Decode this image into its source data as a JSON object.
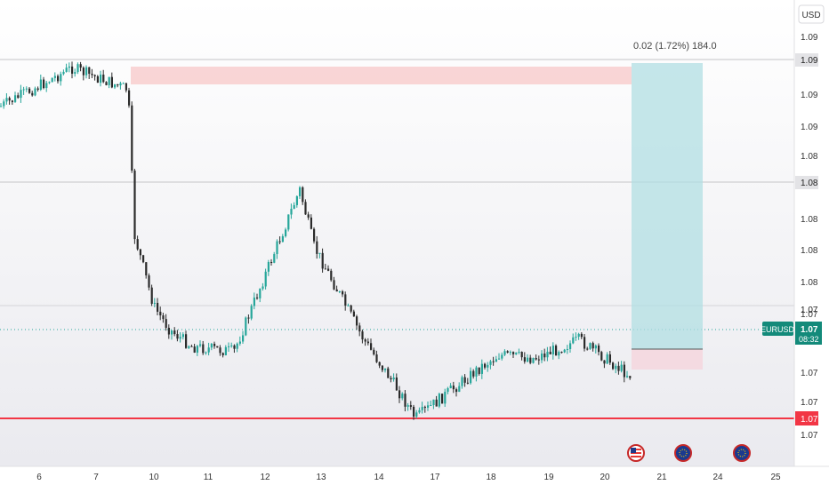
{
  "price_axis": {
    "currency_label": "USD",
    "tick_labels": [
      "1.09",
      "1.09",
      "1.09",
      "1.08",
      "1.08",
      "1.08",
      "1.08",
      "1.07",
      "1.07",
      "1.07",
      "1.07"
    ],
    "marker_top": "1.09",
    "marker_mid": "1.08",
    "marker_low": "1.07",
    "marker_current": "1.07"
  },
  "time_axis": {
    "labels": [
      "6",
      "7",
      "10",
      "11",
      "12",
      "13",
      "14",
      "17",
      "18",
      "19",
      "20",
      "21",
      "24",
      "25"
    ]
  },
  "symbol_tag": {
    "symbol": "EURUSD",
    "price": "1.07",
    "countdown": "08:32"
  },
  "position_tool": {
    "label": "0.02 (1.72%) 184.0"
  },
  "events": [
    {
      "icon": "us-flag-icon"
    },
    {
      "icon": "eu-flag-icon"
    },
    {
      "icon": "eu-flag-icon"
    }
  ],
  "colors": {
    "up": "#26a69a",
    "down": "#2b2b2b",
    "support": "#f23645",
    "supply_zone": "#f8c8c8",
    "target_zone": "#b2dfe3",
    "stop_zone": "#f5d5dc",
    "tag": "#138a7a"
  },
  "chart_data": {
    "type": "candlestick",
    "symbol": "EURUSD",
    "y_ticks_shown": [
      "1.09",
      "1.09",
      "1.09",
      "1.08",
      "1.08",
      "1.08",
      "1.08",
      "1.07",
      "1.07",
      "1.07",
      "1.07"
    ],
    "x_ticks": [
      "6",
      "7",
      "10",
      "11",
      "12",
      "13",
      "14",
      "17",
      "18",
      "19",
      "20",
      "21",
      "24",
      "25"
    ],
    "close_path": [
      [
        "6",
        1.0912
      ],
      [
        "7",
        1.0935
      ],
      [
        "7",
        1.0922
      ],
      [
        "10",
        1.0835
      ],
      [
        "10",
        1.0792
      ],
      [
        "11",
        1.0778
      ],
      [
        "12",
        1.0768
      ],
      [
        "12",
        1.0765
      ],
      [
        "13",
        1.0862
      ],
      [
        "13",
        1.0828
      ],
      [
        "14",
        1.0772
      ],
      [
        "14",
        1.0744
      ],
      [
        "17",
        1.0725
      ],
      [
        "18",
        1.0756
      ],
      [
        "18",
        1.0763
      ],
      [
        "19",
        1.0761
      ],
      [
        "20",
        1.0772
      ],
      [
        "20",
        1.0751
      ]
    ],
    "support_price": 1.0738,
    "legend": "none",
    "grid": false
  }
}
